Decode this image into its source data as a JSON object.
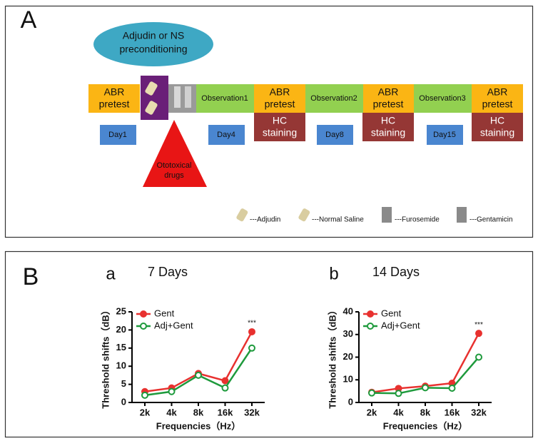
{
  "panel_a": {
    "label": "A",
    "preconditioning": [
      "Adjudin or NS",
      "preconditioning"
    ],
    "drug": [
      "Ototoxical",
      "drugs"
    ],
    "abr_pretest": [
      [
        "ABR",
        "pretest"
      ],
      [
        "ABR",
        "pretest"
      ],
      [
        "ABR",
        "pretest"
      ],
      [
        "ABR",
        "pretest"
      ]
    ],
    "observations": [
      "Observation1",
      "Observation2",
      "Observation3"
    ],
    "days": [
      "Day1",
      "Day4",
      "Day8",
      "Day15"
    ],
    "hc_staining": [
      [
        "HC",
        "staining"
      ],
      [
        "HC",
        "staining"
      ],
      [
        "HC",
        "staining"
      ]
    ],
    "legend": [
      "---Adjudin",
      "---Normal Saline",
      "---Furosemide",
      "---Gentamicin"
    ]
  },
  "panel_b_label": "B",
  "chart_data": [
    {
      "type": "line",
      "panel": "a",
      "title": "7 Days",
      "x_label": "Frequencies（Hz）",
      "y_label": "Threshold shifts（dB）",
      "categories": [
        "2k",
        "4k",
        "8k",
        "16k",
        "32k"
      ],
      "series": [
        {
          "name": "Gent",
          "color": "#e8312f",
          "values": [
            3,
            4,
            8,
            6,
            19.5
          ]
        },
        {
          "name": "Adj+Gent",
          "color": "#1e9a3c",
          "values": [
            2,
            3,
            7.5,
            4,
            15
          ]
        }
      ],
      "ylim": [
        0,
        25
      ],
      "yticks": [
        0,
        5,
        10,
        15,
        20,
        25
      ],
      "annotation": "***"
    },
    {
      "type": "line",
      "panel": "b",
      "title": "14 Days",
      "x_label": "Frequencies（Hz）",
      "y_label": "Threshold shifts（dB）",
      "categories": [
        "2k",
        "4k",
        "8k",
        "16k",
        "32k"
      ],
      "series": [
        {
          "name": "Gent",
          "color": "#e8312f",
          "values": [
            4.5,
            6.2,
            7.2,
            8.5,
            30.5
          ]
        },
        {
          "name": "Adj+Gent",
          "color": "#1e9a3c",
          "values": [
            4.2,
            4,
            6.5,
            6.3,
            20
          ]
        }
      ],
      "ylim": [
        0,
        40
      ],
      "yticks": [
        0,
        10,
        20,
        30,
        40
      ],
      "annotation": "***"
    }
  ]
}
